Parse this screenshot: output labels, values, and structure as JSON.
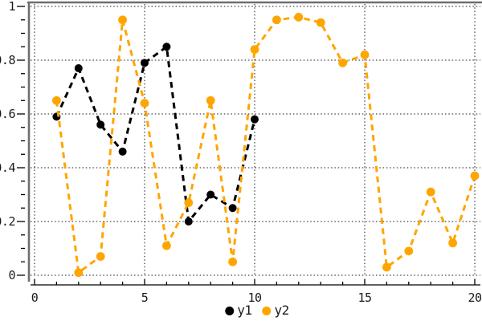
{
  "chart_data": {
    "type": "line",
    "title": "",
    "xlabel": "",
    "ylabel": "",
    "xlim": [
      0,
      20
    ],
    "ylim": [
      0,
      1
    ],
    "x_major_ticks": [
      0,
      5,
      10,
      15,
      20
    ],
    "x_tick_labels": [
      "0",
      "5",
      "10",
      "15",
      "20"
    ],
    "x_minor_tick_step": 1,
    "y_major_ticks": [
      0,
      0.2,
      0.4,
      0.6,
      0.8,
      1
    ],
    "y_tick_labels": [
      "0",
      "0.2",
      "0.4",
      "0.6",
      "0.8",
      "1"
    ],
    "y_minor_tick_step": 0.05,
    "grid": true,
    "grid_style": "dotted",
    "legend_position": "bottom-center",
    "line_style": "dashed",
    "marker": "circle",
    "background": "#ffffff",
    "spine_color": "#6e6e6e",
    "grid_color": "#161616",
    "axis_color": "#000000",
    "tick_label_color": "#1a1a1a",
    "series": [
      {
        "name": "y1",
        "color": "#000000",
        "x": [
          1,
          2,
          3,
          4,
          5,
          6,
          7,
          8,
          9,
          10
        ],
        "y": [
          0.59,
          0.77,
          0.56,
          0.46,
          0.79,
          0.85,
          0.2,
          0.3,
          0.25,
          0.58
        ]
      },
      {
        "name": "y2",
        "color": "#ffa500",
        "x": [
          1,
          2,
          3,
          4,
          5,
          6,
          7,
          8,
          9,
          10,
          11,
          12,
          13,
          14,
          15,
          16,
          17,
          18,
          19,
          20
        ],
        "y": [
          0.65,
          0.01,
          0.07,
          0.95,
          0.64,
          0.11,
          0.27,
          0.65,
          0.05,
          0.84,
          0.95,
          0.96,
          0.94,
          0.79,
          0.82,
          0.03,
          0.09,
          0.31,
          0.12,
          0.37
        ]
      }
    ]
  }
}
